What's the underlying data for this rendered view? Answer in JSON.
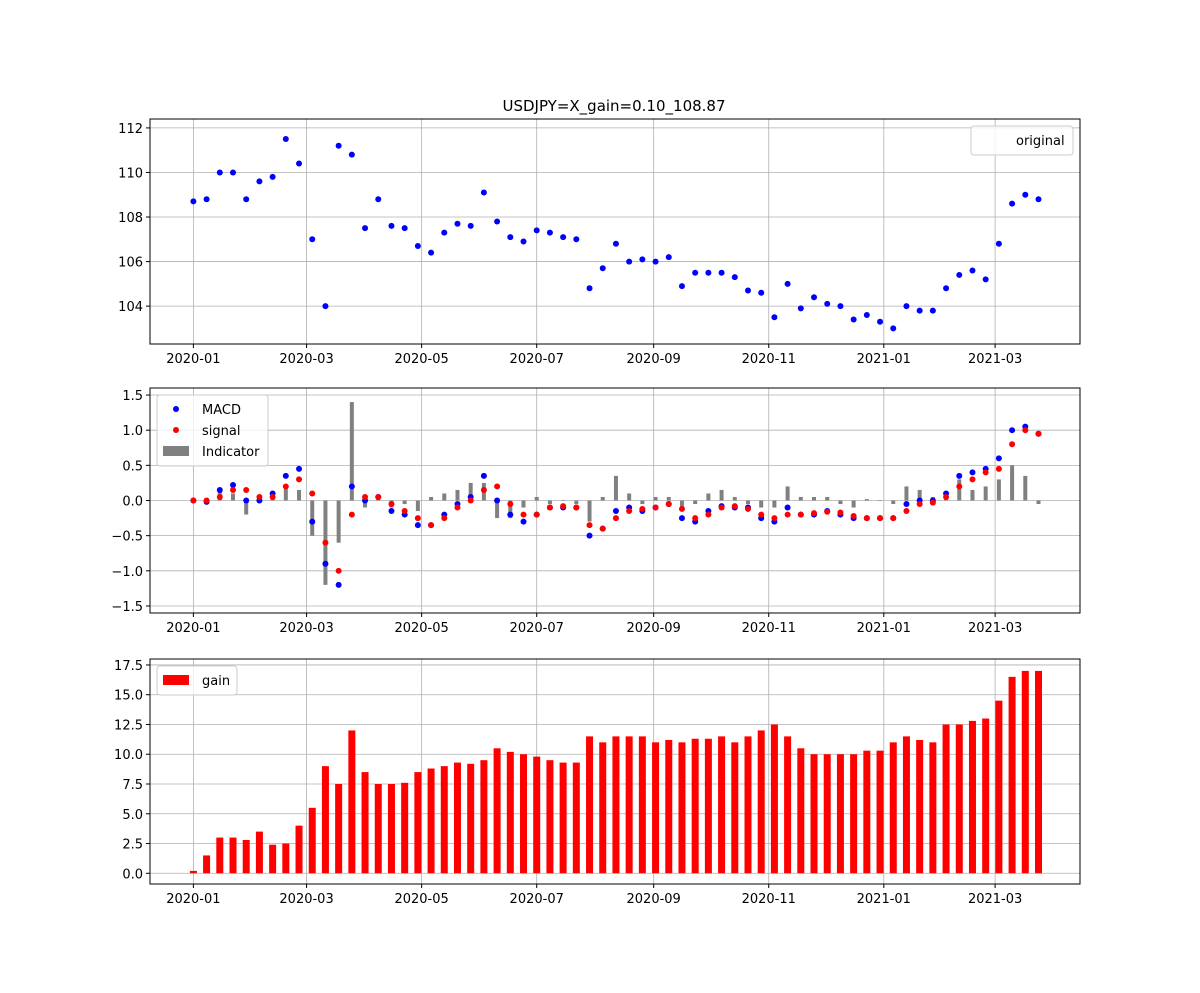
{
  "chart_data": [
    {
      "type": "scatter",
      "title": "USDJPY=X_gain=0.10_108.87",
      "legend": "upper-right",
      "grid": true,
      "series": [
        {
          "name": "original",
          "color": "#0000ff",
          "values": [
            108.7,
            108.8,
            110.0,
            110.0,
            108.8,
            109.6,
            109.8,
            111.5,
            110.4,
            107.0,
            104.0,
            111.2,
            110.8,
            107.5,
            108.8,
            107.6,
            107.5,
            106.7,
            106.4,
            107.3,
            107.7,
            107.6,
            109.1,
            107.8,
            107.1,
            106.9,
            107.4,
            107.3,
            107.1,
            107.0,
            104.8,
            105.7,
            106.8,
            106.0,
            106.1,
            106.0,
            106.2,
            104.9,
            105.5,
            105.5,
            105.5,
            105.3,
            104.7,
            104.6,
            103.5,
            105.0,
            103.9,
            104.4,
            104.1,
            104.0,
            103.4,
            103.6,
            103.3,
            103.0,
            104.0,
            103.8,
            103.8,
            104.8,
            105.4,
            105.6,
            105.2,
            106.8,
            108.6,
            109.0,
            108.8
          ]
        }
      ],
      "ylim": [
        102.3,
        112.4
      ],
      "yticks": [
        "104",
        "106",
        "108",
        "110",
        "112"
      ],
      "ytick_values": [
        104,
        106,
        108,
        110,
        112
      ]
    },
    {
      "type": "scatter+bar",
      "legend": "upper-left",
      "grid": true,
      "series": [
        {
          "name": "MACD",
          "color": "#0000ff",
          "kind": "scatter",
          "values": [
            0,
            -0.02,
            0.15,
            0.22,
            0,
            0,
            0.1,
            0.35,
            0.45,
            -0.3,
            -0.9,
            -1.2,
            0.2,
            0,
            0.05,
            -0.15,
            -0.2,
            -0.35,
            -0.35,
            -0.2,
            -0.05,
            0.05,
            0.35,
            0,
            -0.2,
            -0.3,
            -0.2,
            -0.1,
            -0.1,
            -0.1,
            -0.5,
            -0.4,
            -0.15,
            -0.1,
            -0.15,
            -0.1,
            -0.05,
            -0.25,
            -0.3,
            -0.15,
            -0.08,
            -0.1,
            -0.1,
            -0.25,
            -0.3,
            -0.1,
            -0.2,
            -0.2,
            -0.15,
            -0.2,
            -0.25,
            -0.25,
            -0.25,
            -0.25,
            -0.05,
            0,
            0,
            0.1,
            0.35,
            0.4,
            0.45,
            0.6,
            1.0,
            1.05,
            0.95
          ]
        },
        {
          "name": "signal",
          "color": "#ff0000",
          "kind": "scatter",
          "values": [
            0,
            0,
            0.05,
            0.15,
            0.15,
            0.05,
            0.05,
            0.2,
            0.3,
            0.1,
            -0.6,
            -1.0,
            -0.2,
            0.05,
            0.05,
            -0.05,
            -0.15,
            -0.25,
            -0.35,
            -0.25,
            -0.1,
            0,
            0.15,
            0.2,
            -0.05,
            -0.2,
            -0.2,
            -0.1,
            -0.08,
            -0.1,
            -0.35,
            -0.4,
            -0.25,
            -0.15,
            -0.12,
            -0.1,
            -0.05,
            -0.12,
            -0.25,
            -0.2,
            -0.1,
            -0.08,
            -0.12,
            -0.2,
            -0.25,
            -0.2,
            -0.2,
            -0.18,
            -0.16,
            -0.17,
            -0.22,
            -0.25,
            -0.25,
            -0.25,
            -0.15,
            -0.05,
            -0.03,
            0.05,
            0.2,
            0.3,
            0.4,
            0.45,
            0.8,
            1.0,
            0.95
          ]
        },
        {
          "name": "Indicator",
          "color": "#808080",
          "kind": "bar",
          "values": [
            0,
            0,
            0.15,
            0.1,
            -0.2,
            0,
            0.08,
            0.2,
            0.15,
            -0.5,
            -1.2,
            -0.6,
            1.4,
            -0.1,
            0.05,
            -0.1,
            -0.05,
            -0.15,
            0.05,
            0.1,
            0.15,
            0.25,
            0.25,
            -0.25,
            -0.25,
            -0.1,
            0.05,
            -0.05,
            0,
            -0.05,
            -0.3,
            0.05,
            0.35,
            0.1,
            -0.05,
            0.05,
            0.05,
            -0.15,
            -0.05,
            0.1,
            0.15,
            0.05,
            -0.05,
            -0.1,
            -0.1,
            0.2,
            0.05,
            0.05,
            0.05,
            -0.05,
            -0.1,
            0.02,
            0,
            -0.05,
            0.2,
            0.15,
            0.05,
            0.1,
            0.3,
            0.15,
            0.2,
            0.3,
            0.5,
            0.35,
            -0.05
          ]
        }
      ],
      "ylim": [
        -1.6,
        1.6
      ],
      "yticks": [
        "−1.5",
        "−1.0",
        "−0.5",
        "0.0",
        "0.5",
        "1.0",
        "1.5"
      ],
      "ytick_values": [
        -1.5,
        -1,
        -0.5,
        0,
        0.5,
        1,
        1.5
      ]
    },
    {
      "type": "bar",
      "legend": "upper-left",
      "grid": true,
      "series": [
        {
          "name": "gain",
          "color": "#ff0000",
          "values": [
            0.2,
            1.5,
            3.0,
            3.0,
            2.8,
            3.5,
            2.4,
            2.5,
            4.0,
            5.5,
            9.0,
            7.5,
            12.0,
            8.5,
            7.5,
            7.5,
            7.6,
            8.5,
            8.8,
            9.0,
            9.3,
            9.2,
            9.5,
            10.5,
            10.2,
            10.0,
            9.8,
            9.5,
            9.3,
            9.3,
            11.5,
            11.0,
            11.5,
            11.5,
            11.5,
            11.0,
            11.2,
            11.0,
            11.3,
            11.3,
            11.5,
            11.0,
            11.5,
            12.0,
            12.5,
            11.5,
            10.5,
            10.0,
            10.0,
            10.0,
            10.0,
            10.3,
            10.3,
            11.0,
            11.5,
            11.2,
            11.0,
            12.5,
            12.5,
            12.8,
            13.0,
            14.5,
            16.5,
            17.0,
            17.0
          ]
        }
      ],
      "ylim": [
        -0.9,
        18.0
      ],
      "yticks": [
        "0.0",
        "2.5",
        "5.0",
        "7.5",
        "10.0",
        "12.5",
        "15.0",
        "17.5"
      ],
      "ytick_values": [
        0,
        2.5,
        5,
        7.5,
        10,
        12.5,
        15,
        17.5
      ]
    }
  ],
  "x": [
    "2020-01-01",
    "2020-01-08",
    "2020-01-15",
    "2020-01-22",
    "2020-01-29",
    "2020-02-05",
    "2020-02-12",
    "2020-02-19",
    "2020-02-26",
    "2020-03-04",
    "2020-03-11",
    "2020-03-18",
    "2020-03-25",
    "2020-04-01",
    "2020-04-08",
    "2020-04-15",
    "2020-04-22",
    "2020-04-29",
    "2020-05-06",
    "2020-05-13",
    "2020-05-20",
    "2020-05-27",
    "2020-06-03",
    "2020-06-10",
    "2020-06-17",
    "2020-06-24",
    "2020-07-01",
    "2020-07-08",
    "2020-07-15",
    "2020-07-22",
    "2020-07-29",
    "2020-08-05",
    "2020-08-12",
    "2020-08-19",
    "2020-08-26",
    "2020-09-02",
    "2020-09-09",
    "2020-09-16",
    "2020-09-23",
    "2020-09-30",
    "2020-10-07",
    "2020-10-14",
    "2020-10-21",
    "2020-10-28",
    "2020-11-04",
    "2020-11-11",
    "2020-11-18",
    "2020-11-25",
    "2020-12-02",
    "2020-12-09",
    "2020-12-16",
    "2020-12-23",
    "2020-12-30",
    "2021-01-06",
    "2021-01-13",
    "2021-01-20",
    "2021-01-27",
    "2021-02-03",
    "2021-02-10",
    "2021-02-17",
    "2021-02-24",
    "2021-03-03",
    "2021-03-10",
    "2021-03-17",
    "2021-03-24"
  ],
  "xticks": [
    "2020-01",
    "2020-03",
    "2020-05",
    "2020-07",
    "2020-09",
    "2020-11",
    "2021-01",
    "2021-03"
  ],
  "xlim": [
    "2019-12-09",
    "2021-04-15"
  ]
}
